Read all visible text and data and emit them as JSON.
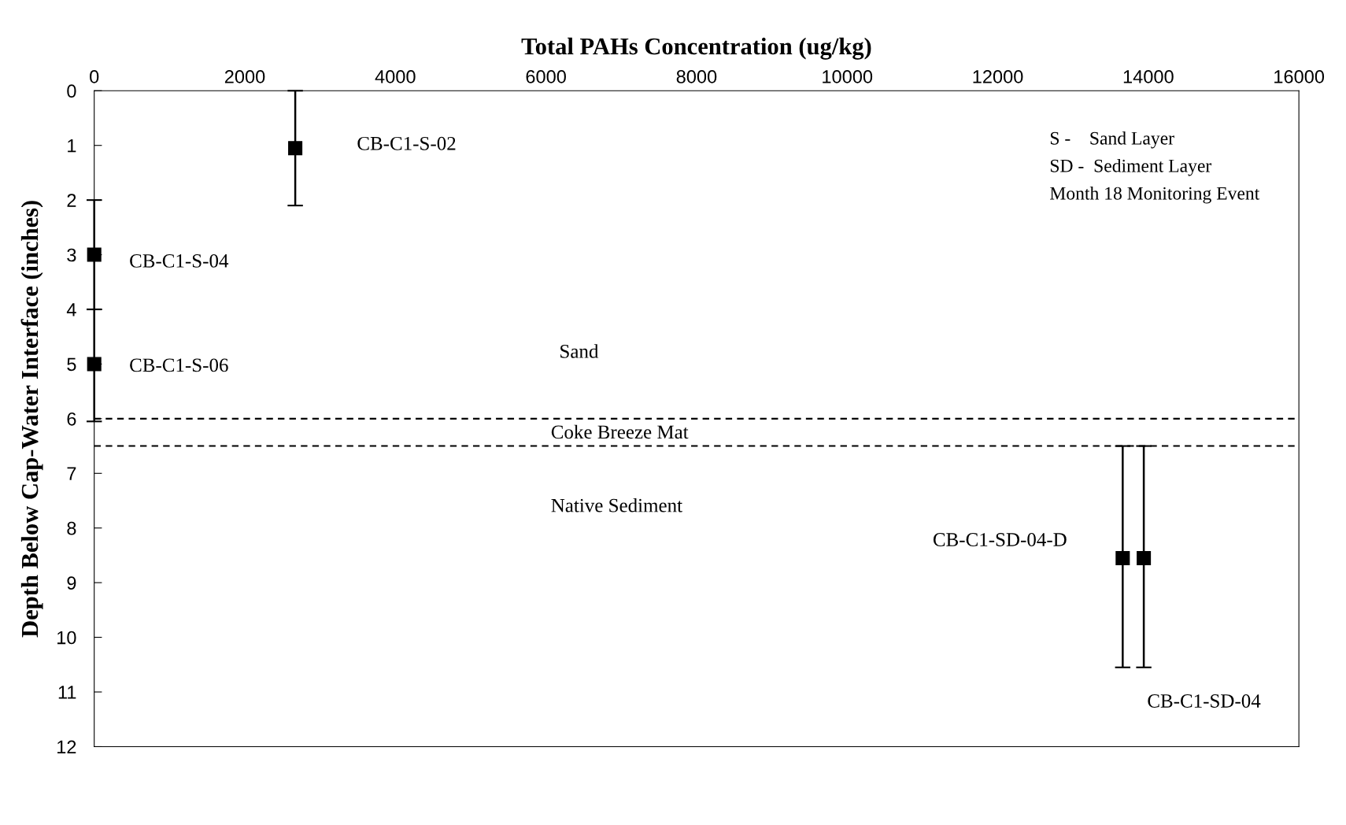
{
  "chart_data": {
    "type": "scatter",
    "xlabel": "Total PAHs Concentration (ug/kg)",
    "ylabel": "Depth Below Cap-Water Interface (inches)",
    "series": [
      {
        "color": "#000000",
        "x": [
          2670,
          0,
          0,
          13660,
          13940
        ],
        "values": [
          1.05,
          3,
          5,
          8.55,
          8.55
        ],
        "errors": [
          [
            0,
            2.1
          ],
          [
            2,
            4
          ],
          [
            4,
            6.05
          ],
          [
            6.5,
            10.55
          ],
          [
            6.5,
            10.55
          ]
        ]
      }
    ],
    "marker": "square",
    "xlim": [
      0,
      16000
    ],
    "xticks": [
      0,
      2000,
      4000,
      6000,
      8000,
      10000,
      12000,
      14000,
      16000
    ],
    "ylim": [
      12,
      0
    ],
    "yticks": [
      0,
      1,
      2,
      3,
      4,
      5,
      6,
      7,
      8,
      9,
      10,
      11,
      12
    ],
    "ref_lines": [
      {
        "axis": "y",
        "value": 6,
        "color": "#000000",
        "line_style": "dashed"
      },
      {
        "axis": "y",
        "value": 6.5,
        "color": "#000000",
        "line_style": "dashed"
      }
    ],
    "annotations": [
      "CB-C1-S-02",
      "CB-C1-S-04",
      "CB-C1-S-06",
      "CB-C1-SD-04-D",
      "CB-C1-SD-04",
      "Sand",
      "Coke Breeze Mat",
      "Native Sediment",
      "S -    Sand Layer",
      "SD -  Sediment Layer",
      "Month 18 Monitoring Event"
    ],
    "grid": false,
    "legend": false
  }
}
